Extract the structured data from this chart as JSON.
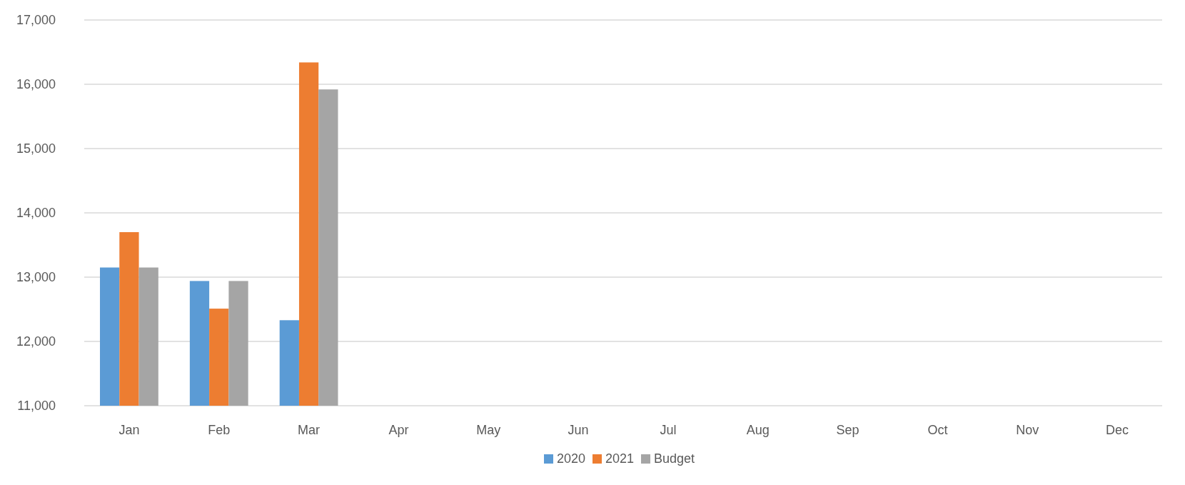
{
  "chart_data": {
    "type": "bar",
    "categories": [
      "Jan",
      "Feb",
      "Mar",
      "Apr",
      "May",
      "Jun",
      "Jul",
      "Aug",
      "Sep",
      "Oct",
      "Nov",
      "Dec"
    ],
    "series": [
      {
        "name": "2020",
        "color": "#5b9bd5",
        "values": [
          13150,
          12940,
          12330,
          null,
          null,
          null,
          null,
          null,
          null,
          null,
          null,
          null
        ]
      },
      {
        "name": "2021",
        "color": "#ed7d31",
        "values": [
          13700,
          12510,
          16340,
          null,
          null,
          null,
          null,
          null,
          null,
          null,
          null,
          null
        ]
      },
      {
        "name": "Budget",
        "color": "#a5a5a5",
        "values": [
          13150,
          12940,
          15920,
          null,
          null,
          null,
          null,
          null,
          null,
          null,
          null,
          null
        ]
      }
    ],
    "ylim": [
      11000,
      17000
    ],
    "yticks": [
      {
        "value": 11000,
        "label": "11,000"
      },
      {
        "value": 12000,
        "label": "12,000"
      },
      {
        "value": 13000,
        "label": "13,000"
      },
      {
        "value": 14000,
        "label": "14,000"
      },
      {
        "value": 15000,
        "label": "15,000"
      },
      {
        "value": 16000,
        "label": "16,000"
      },
      {
        "value": 17000,
        "label": "17,000"
      }
    ],
    "grid": "y",
    "legend": "bottom"
  }
}
